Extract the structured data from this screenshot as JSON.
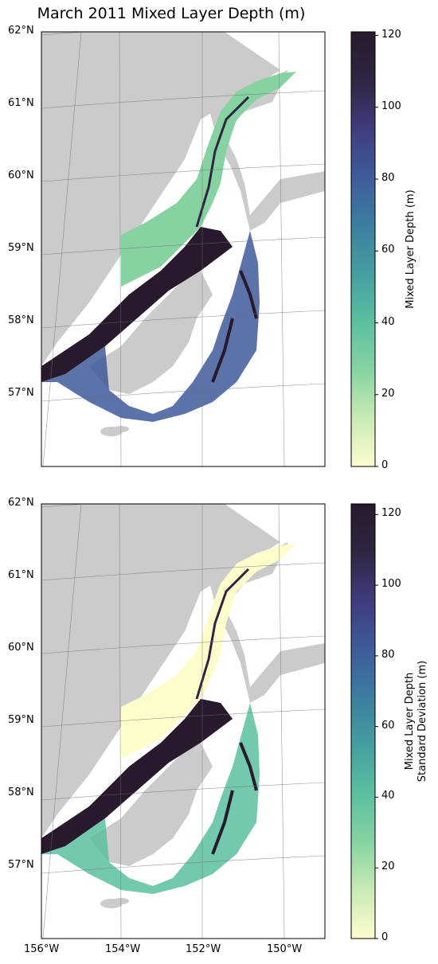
{
  "title": "March 2011 Mixed Layer Depth (m)",
  "lat_labels": [
    "62°N",
    "61°N",
    "60°N",
    "59°N",
    "58°N",
    "57°N"
  ],
  "lon_labels": [
    "156°W",
    "154°W",
    "152°W",
    "150°W"
  ],
  "panels": [
    {
      "name": "mixed-layer-depth-map",
      "colorbar": {
        "label_lines": [
          "Mixed Layer Depth (m)"
        ],
        "ticks": [
          "0",
          "20",
          "40",
          "60",
          "80",
          "100",
          "120"
        ],
        "max": 121
      }
    },
    {
      "name": "mixed-layer-depth-std-map",
      "colorbar": {
        "label_lines": [
          "Mixed Layer Depth",
          "Standard Deviation (m)"
        ],
        "ticks": [
          "0",
          "20",
          "40",
          "60",
          "80",
          "100",
          "120"
        ],
        "max": 123
      }
    }
  ],
  "colors": {
    "land": "#cbcbcb",
    "grid": "#6e6e6e",
    "cmap": [
      "#fdfdcc",
      "#c9ebb4",
      "#86d3a1",
      "#5bbfa0",
      "#469ea0",
      "#3b7ea0",
      "#3f5b9b",
      "#3f3c7c",
      "#2f2542",
      "#281a2c"
    ]
  }
}
